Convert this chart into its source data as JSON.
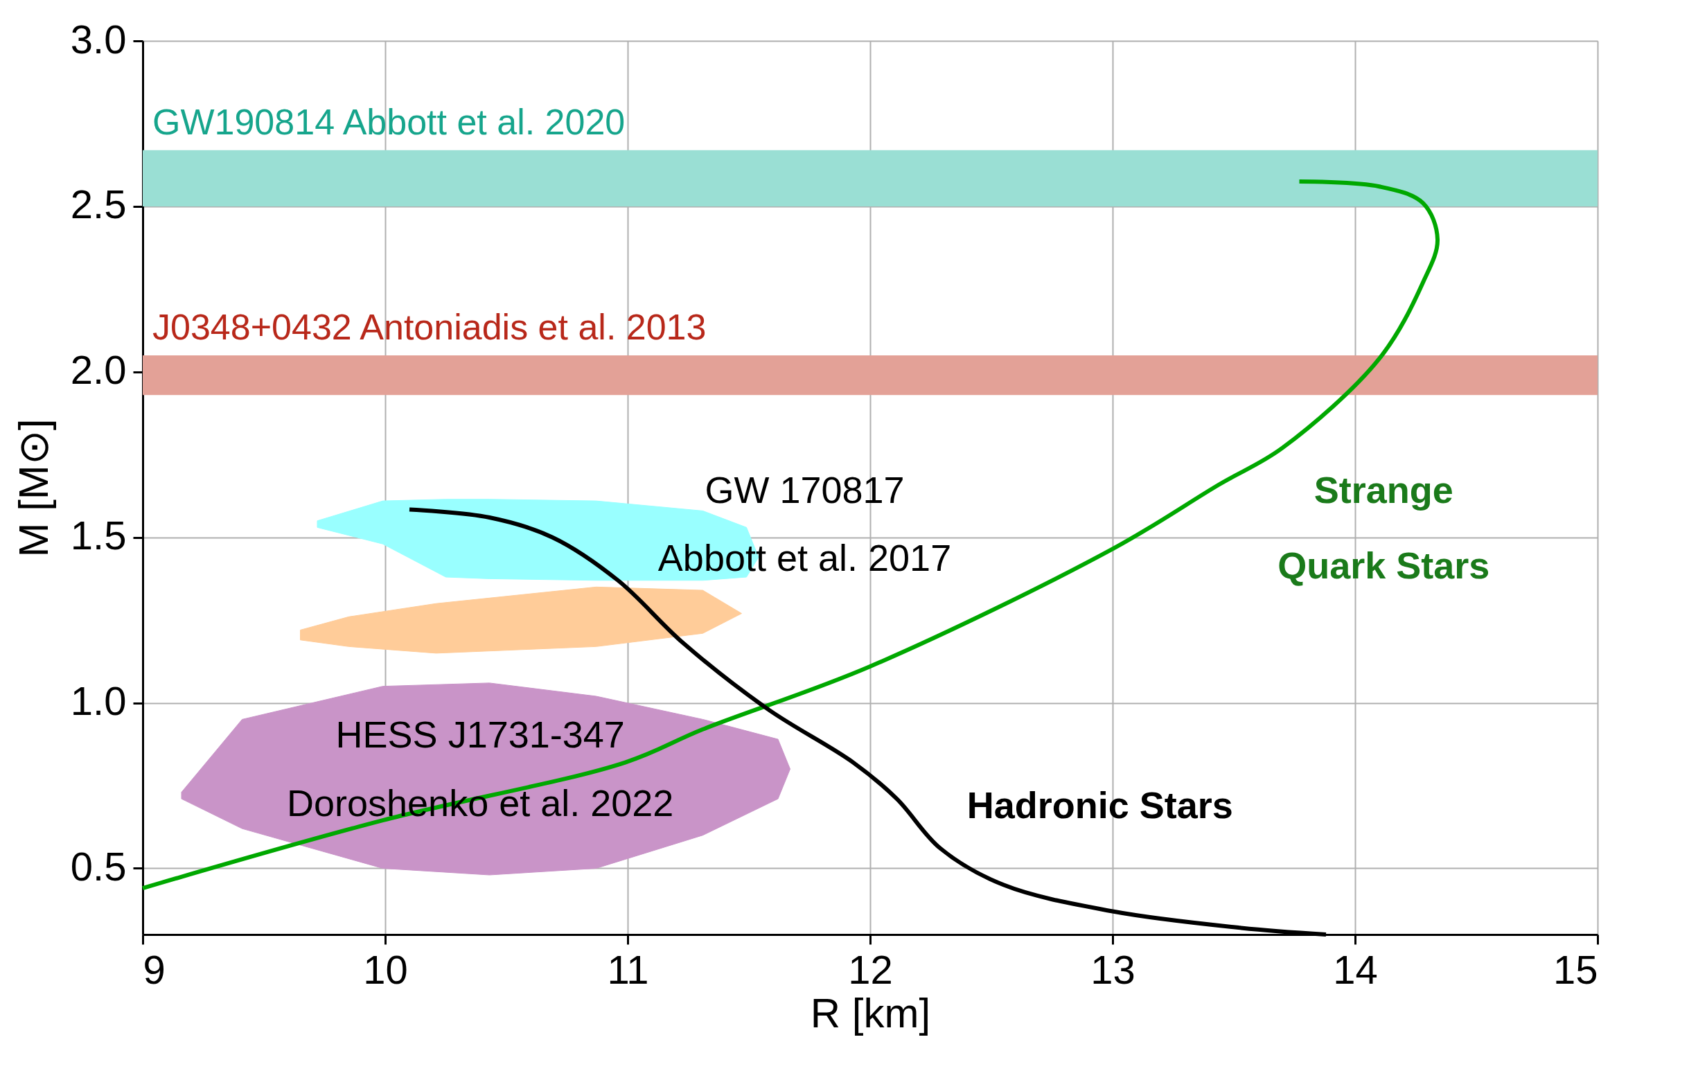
{
  "chart_data": {
    "type": "line",
    "xlabel": "R [km]",
    "ylabel": "M [M⊙]",
    "xlim": [
      9,
      15
    ],
    "ylim": [
      0.3,
      3.0
    ],
    "xticks": [
      9,
      10,
      11,
      12,
      13,
      14,
      15
    ],
    "yticks": [
      0.5,
      {
        "value": 1,
        "label": "1.0"
      },
      1.5,
      {
        "value": 2,
        "label": "2.0"
      },
      2.5,
      {
        "value": 3,
        "label": "3.0"
      }
    ],
    "grid": true,
    "bands": [
      {
        "axis": "y",
        "from": 2.5,
        "to": 2.67,
        "label": "GW190814 Abbott et al. 2020",
        "color": "#9adfd4"
      },
      {
        "axis": "y",
        "from": 1.93,
        "to": 2.05,
        "label": "J0348+0432 Antoniadis et al. 2013",
        "color": "#e3a197"
      }
    ],
    "series": [
      {
        "type": "area",
        "color": "#99ffff",
        "x": [
          9.72,
          9.99,
          10.25,
          10.43,
          10.87,
          11.31,
          11.49,
          11.54,
          11.49,
          11.31,
          10.87,
          10.43,
          10.25,
          9.99,
          9.72
        ],
        "values": [
          1.55,
          1.61,
          1.615,
          1.615,
          1.61,
          1.58,
          1.53,
          1.44,
          1.38,
          1.37,
          1.37,
          1.375,
          1.38,
          1.48,
          1.53
        ]
      },
      {
        "type": "area",
        "color": "#ffcc99",
        "x": [
          9.65,
          9.85,
          10.21,
          10.87,
          11.31,
          11.47,
          11.31,
          10.87,
          10.21,
          9.85,
          9.65
        ],
        "values": [
          1.22,
          1.26,
          1.3,
          1.35,
          1.34,
          1.27,
          1.21,
          1.17,
          1.15,
          1.17,
          1.19
        ]
      },
      {
        "type": "area",
        "color": "#c994c8",
        "x": [
          9.16,
          9.41,
          9.99,
          10.43,
          10.87,
          11.31,
          11.62,
          11.67,
          11.62,
          11.31,
          10.87,
          10.43,
          9.99,
          9.41,
          9.16
        ],
        "values": [
          0.73,
          0.95,
          1.05,
          1.06,
          1.02,
          0.95,
          0.89,
          0.8,
          0.71,
          0.6,
          0.5,
          0.48,
          0.5,
          0.62,
          0.71
        ]
      },
      {
        "type": "line",
        "color": "#00a800",
        "x": [
          9.0,
          9.99,
          10.99,
          11.31,
          12.0,
          13.0,
          13.44,
          13.7,
          14.1,
          14.28,
          14.34,
          14.28,
          14.1,
          13.77
        ],
        "values": [
          0.44,
          0.645,
          0.82,
          0.92,
          1.11,
          1.465,
          1.66,
          1.77,
          2.04,
          2.27,
          2.4,
          2.51,
          2.56,
          2.575
        ]
      },
      {
        "type": "line",
        "color": "#000000",
        "x": [
          10.1,
          10.43,
          10.69,
          10.96,
          11.23,
          11.58,
          11.93,
          12.11,
          12.29,
          12.55,
          13.0,
          13.53,
          13.88
        ],
        "values": [
          1.584,
          1.56,
          1.5,
          1.37,
          1.18,
          0.98,
          0.82,
          0.71,
          0.56,
          0.45,
          0.37,
          0.32,
          0.3
        ]
      }
    ],
    "annotations": [
      "GW 170817",
      "Abbott et al. 2017",
      "HESS J1731-347",
      "Doroshenko et al. 2022",
      "Strange",
      "Quark Stars",
      "Hadronic Stars"
    ]
  }
}
